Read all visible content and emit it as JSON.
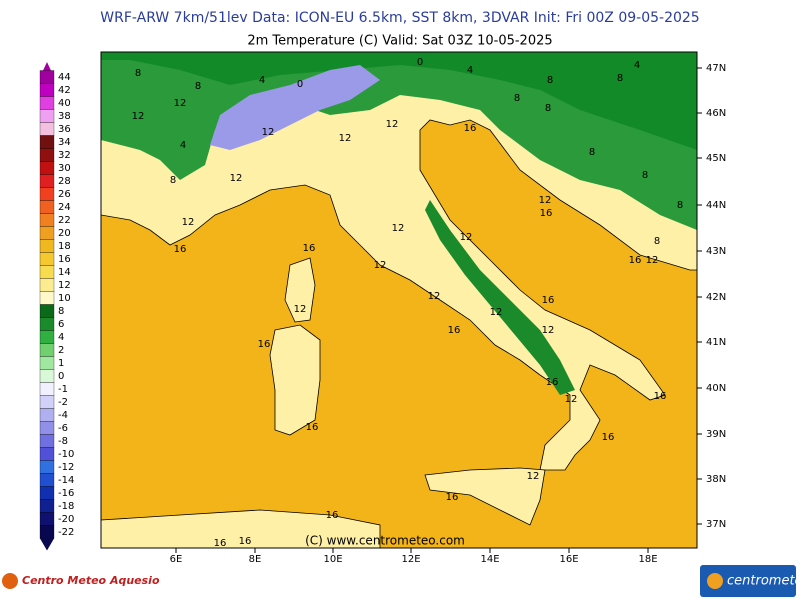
{
  "header": {
    "title": "WRF-ARW 7km/51lev  Data: ICON-EU 6.5km, SST 8km, 3DVAR  Init: Fri 00Z 09-05-2025",
    "subtitle": "2m Temperature (C)  Valid: Sat 03Z 10-05-2025"
  },
  "colorbar": {
    "levels": [
      {
        "label": 44,
        "color": "#a000a0"
      },
      {
        "label": 42,
        "color": "#c000c0"
      },
      {
        "label": 40,
        "color": "#e040e0"
      },
      {
        "label": 38,
        "color": "#f0a0f0"
      },
      {
        "label": 36,
        "color": "#f4c0e0"
      },
      {
        "label": 34,
        "color": "#701010"
      },
      {
        "label": 32,
        "color": "#901010"
      },
      {
        "label": 30,
        "color": "#c01010"
      },
      {
        "label": 28,
        "color": "#e02020"
      },
      {
        "label": 26,
        "color": "#f04020"
      },
      {
        "label": 24,
        "color": "#f06020"
      },
      {
        "label": 22,
        "color": "#f08020"
      },
      {
        "label": 20,
        "color": "#f0a020"
      },
      {
        "label": 18,
        "color": "#f0b820"
      },
      {
        "label": 16,
        "color": "#f5c830"
      },
      {
        "label": 14,
        "color": "#f8dc50"
      },
      {
        "label": 12,
        "color": "#fcec90"
      },
      {
        "label": 10,
        "color": "#fff8c8"
      },
      {
        "label": 8,
        "color": "#0a6a1a"
      },
      {
        "label": 6,
        "color": "#1a8a2a"
      },
      {
        "label": 4,
        "color": "#30b040"
      },
      {
        "label": 2,
        "color": "#70d070"
      },
      {
        "label": 1,
        "color": "#a0e8a0"
      },
      {
        "label": 0,
        "color": "#d8f8d8"
      },
      {
        "label": -1,
        "color": "#f0f0ff"
      },
      {
        "label": -2,
        "color": "#d0d0f8"
      },
      {
        "label": -4,
        "color": "#b0b0f0"
      },
      {
        "label": -6,
        "color": "#9090e8"
      },
      {
        "label": -8,
        "color": "#7070e0"
      },
      {
        "label": -10,
        "color": "#5050d8"
      },
      {
        "label": -12,
        "color": "#3070e0"
      },
      {
        "label": -14,
        "color": "#2050d0"
      },
      {
        "label": -16,
        "color": "#1030b0"
      },
      {
        "label": -18,
        "color": "#102090"
      },
      {
        "label": -20,
        "color": "#101070"
      },
      {
        "label": -22,
        "color": "#080850"
      }
    ]
  },
  "map": {
    "lat_labels": [
      "47N",
      "46N",
      "45N",
      "44N",
      "43N",
      "42N",
      "41N",
      "40N",
      "39N",
      "38N",
      "37N"
    ],
    "lon_labels": [
      "6E",
      "8E",
      "10E",
      "12E",
      "14E",
      "16E",
      "18E"
    ],
    "contour_labels": [
      "8",
      "4",
      "0",
      "0",
      "4",
      "8",
      "8",
      "4",
      "8",
      "12",
      "12",
      "12",
      "12",
      "12",
      "16",
      "8",
      "8",
      "4",
      "8",
      "8",
      "12",
      "12",
      "16",
      "12",
      "16",
      "12",
      "12",
      "16",
      "12",
      "12",
      "12",
      "12",
      "16",
      "12",
      "16",
      "16",
      "16",
      "12",
      "16",
      "16",
      "16",
      "12",
      "16",
      "16",
      "16",
      "16",
      "16",
      "12",
      "8",
      "8",
      "8"
    ],
    "watermark": "(C) www.centrometeo.com"
  },
  "footer": {
    "left_logo": "Centro Meteo Aquesio",
    "right_logo": "centrometeo"
  }
}
